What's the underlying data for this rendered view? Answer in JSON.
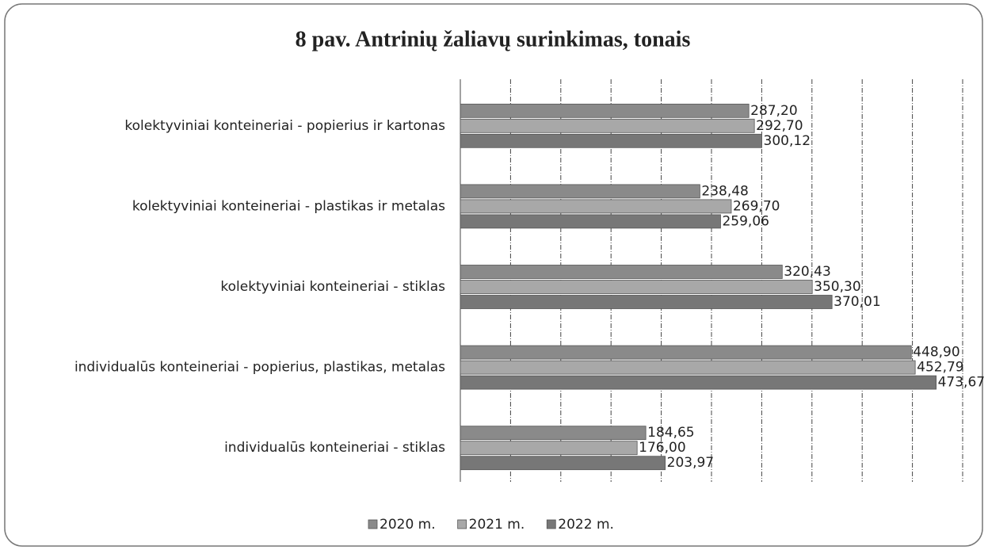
{
  "chart_data": {
    "type": "bar",
    "orientation": "horizontal",
    "title": "8 pav. Antrinių žaliavų surinkimas, tonais",
    "categories": [
      "kolektyviniai konteineriai - popierius ir kartonas",
      "kolektyviniai konteineriai - plastikas ir metalas",
      "kolektyviniai konteineriai - stiklas",
      "individualūs konteineriai - popierius, plastikas, metalas",
      "individualūs konteineriai - stiklas"
    ],
    "series": [
      {
        "name": "2020 m.",
        "color": "#8a8a8a",
        "values": [
          287.2,
          238.48,
          320.43,
          448.9,
          184.65
        ],
        "value_labels": [
          "287,20",
          "238,48",
          "320,43",
          "448,90",
          "184,65"
        ]
      },
      {
        "name": "2021 m.",
        "color": "#a8a8a8",
        "values": [
          292.7,
          269.7,
          350.3,
          452.79,
          176.0
        ],
        "value_labels": [
          "292,70",
          "269,70",
          "350,30",
          "452,79",
          "176,00"
        ]
      },
      {
        "name": "2022 m.",
        "color": "#777777",
        "values": [
          300.12,
          259.06,
          370.01,
          473.67,
          203.97
        ],
        "value_labels": [
          "300,12",
          "259,06",
          "370,01",
          "473,67",
          "203,97"
        ]
      }
    ],
    "xlim": [
      0,
      500
    ],
    "xticks": [
      0,
      50,
      100,
      150,
      200,
      250,
      300,
      350,
      400,
      450,
      500
    ],
    "grid": true,
    "legend": "bottom"
  }
}
